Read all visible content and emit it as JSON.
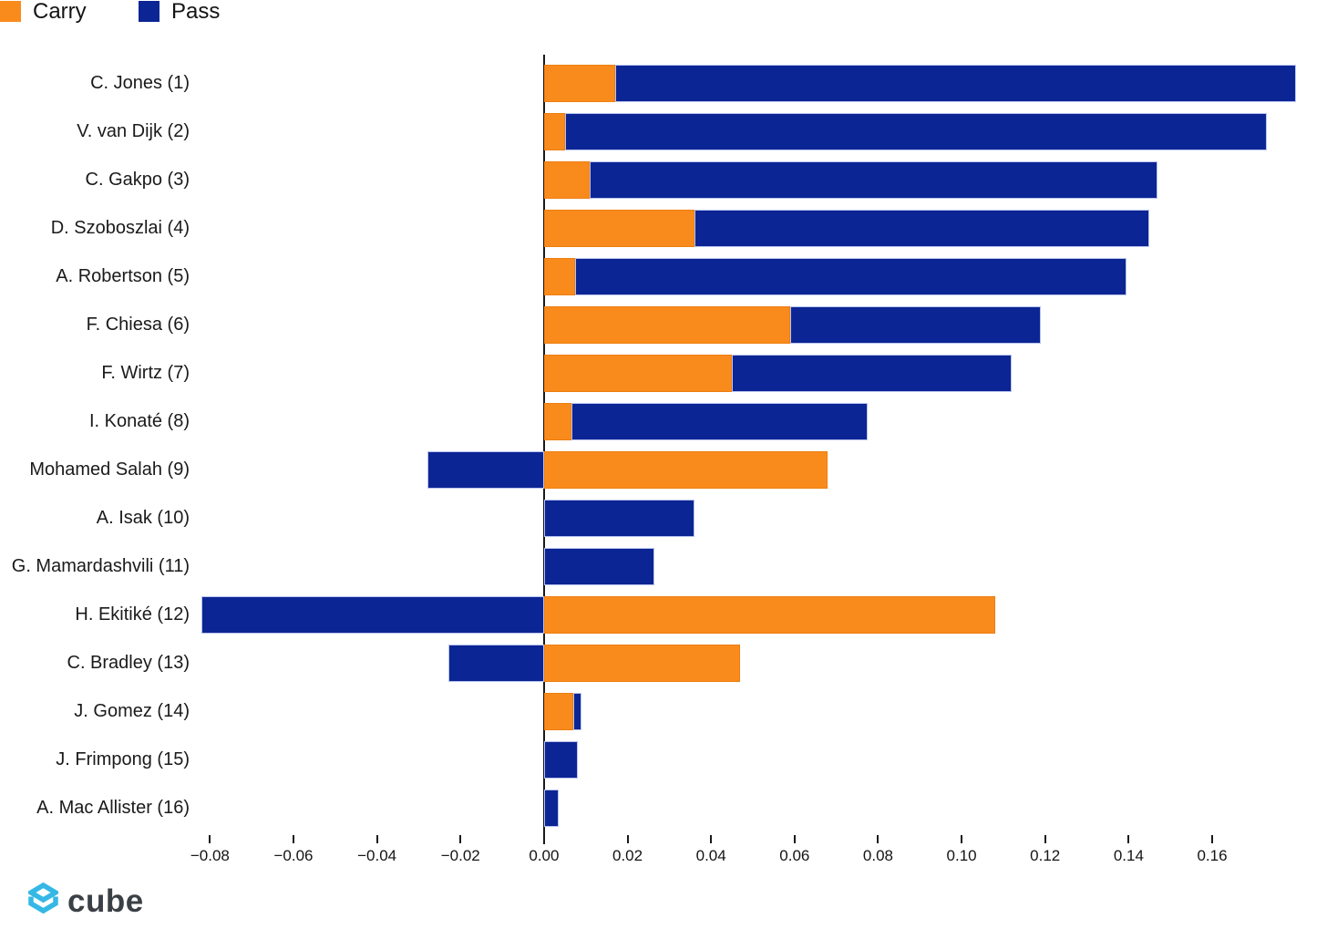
{
  "legend": {
    "items": [
      {
        "label": "Carry",
        "color": "#F98B1D"
      },
      {
        "label": "Pass",
        "color": "#0C2594"
      }
    ],
    "position": "top-left"
  },
  "footer": {
    "logo_text": "cube",
    "logo_icon": "cube-wireframe-icon",
    "logo_icon_color": "#35B8E6",
    "logo_text_color": "#3A4045"
  },
  "chart_data": {
    "type": "bar",
    "orientation": "horizontal",
    "stacked": true,
    "title": "",
    "xlabel": "",
    "ylabel": "",
    "grid": false,
    "zero_line": true,
    "legend_position": "top-left",
    "categories": [
      "C. Jones (1)",
      "V. van Dijk (2)",
      "C. Gakpo (3)",
      "D. Szoboszlai (4)",
      "A. Robertson (5)",
      "F. Chiesa (6)",
      "F. Wirtz (7)",
      "I. Konaté (8)",
      "Mohamed Salah (9)",
      "A. Isak (10)",
      "G. Mamardashvili (11)",
      "H. Ekitiké (12)",
      "C. Bradley (13)",
      "J. Gomez (14)",
      "J. Frimpong (15)",
      "A. Mac Allister (16)"
    ],
    "series": [
      {
        "name": "Carry",
        "color": "#F98B1D",
        "values": [
          0.017,
          0.005,
          0.011,
          0.036,
          0.0075,
          0.059,
          0.045,
          0.0065,
          0.068,
          0.0,
          0.0,
          0.108,
          0.047,
          0.007,
          0.0,
          0.0
        ]
      },
      {
        "name": "Pass",
        "color": "#0C2594",
        "values": [
          0.163,
          0.168,
          0.136,
          0.109,
          0.132,
          0.06,
          0.067,
          0.071,
          -0.028,
          0.036,
          0.0265,
          -0.082,
          -0.023,
          0.002,
          0.008,
          0.0035
        ]
      }
    ],
    "xlim": [
      -0.0875,
      0.1875
    ],
    "xticks": {
      "values": [
        -0.08,
        -0.06,
        -0.04,
        -0.02,
        0.0,
        0.02,
        0.04,
        0.06,
        0.08,
        0.1,
        0.12,
        0.14,
        0.16
      ],
      "labels": [
        "−0.08",
        "−0.06",
        "−0.04",
        "−0.02",
        "0.00",
        "0.02",
        "0.04",
        "0.06",
        "0.08",
        "0.10",
        "0.12",
        "0.14",
        "0.16"
      ]
    }
  }
}
